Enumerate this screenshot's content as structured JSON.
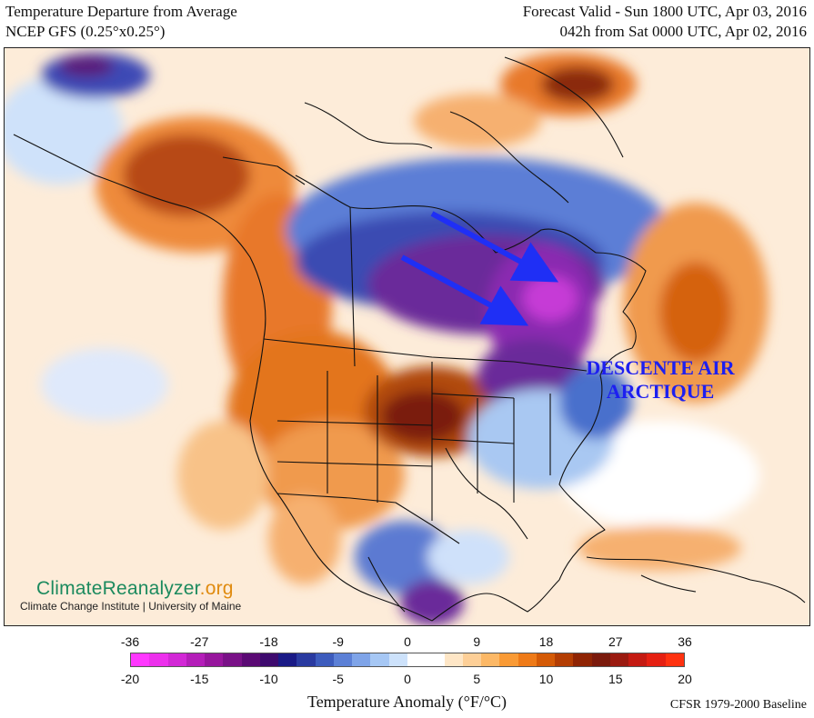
{
  "header": {
    "title": "Temperature Departure from Average",
    "model": "NCEP GFS (0.25°x0.25°)",
    "forecast_valid": "Forecast Valid - Sun 1800 UTC, Apr 03, 2016",
    "lead_time": "042h from Sat 0000 UTC, Apr 02, 2016"
  },
  "watermark": {
    "brand_main": "ClimateReanalyzer",
    "brand_tld": ".org",
    "institution": "Climate Change Institute | University of Maine",
    "brand_color_main": "#1c8a5e",
    "brand_color_tld": "#e08b10"
  },
  "annotation": {
    "line1": "DESCENTE AIR",
    "line2": "ARCTIQUE",
    "color": "#1d1ff0",
    "arrow_color": "#1f2ff5"
  },
  "legend": {
    "f_ticks": [
      "-36",
      "-27",
      "-18",
      "-9",
      "0",
      "9",
      "18",
      "27",
      "36"
    ],
    "c_ticks": [
      "-20",
      "-15",
      "-10",
      "-5",
      "0",
      "5",
      "10",
      "15",
      "20"
    ],
    "title": "Temperature Anomaly (°F/°C)",
    "baseline": "CFSR 1979-2000 Baseline",
    "colors": [
      "#ff38ff",
      "#ec30ec",
      "#d228d6",
      "#b41eb9",
      "#97169d",
      "#791187",
      "#5b0a74",
      "#3e0a6e",
      "#1a1a86",
      "#2a3aa0",
      "#3d5cbd",
      "#5c80d6",
      "#7fa4e8",
      "#a6c7f4",
      "#cde2fb",
      "#ffffff",
      "#ffffff",
      "#fee6c6",
      "#fdcf97",
      "#fcb866",
      "#f99a35",
      "#ee7a18",
      "#d45a06",
      "#b33d03",
      "#8f2404",
      "#7a1a0c",
      "#9a1a10",
      "#c41a12",
      "#e52012",
      "#ff3210"
    ]
  }
}
